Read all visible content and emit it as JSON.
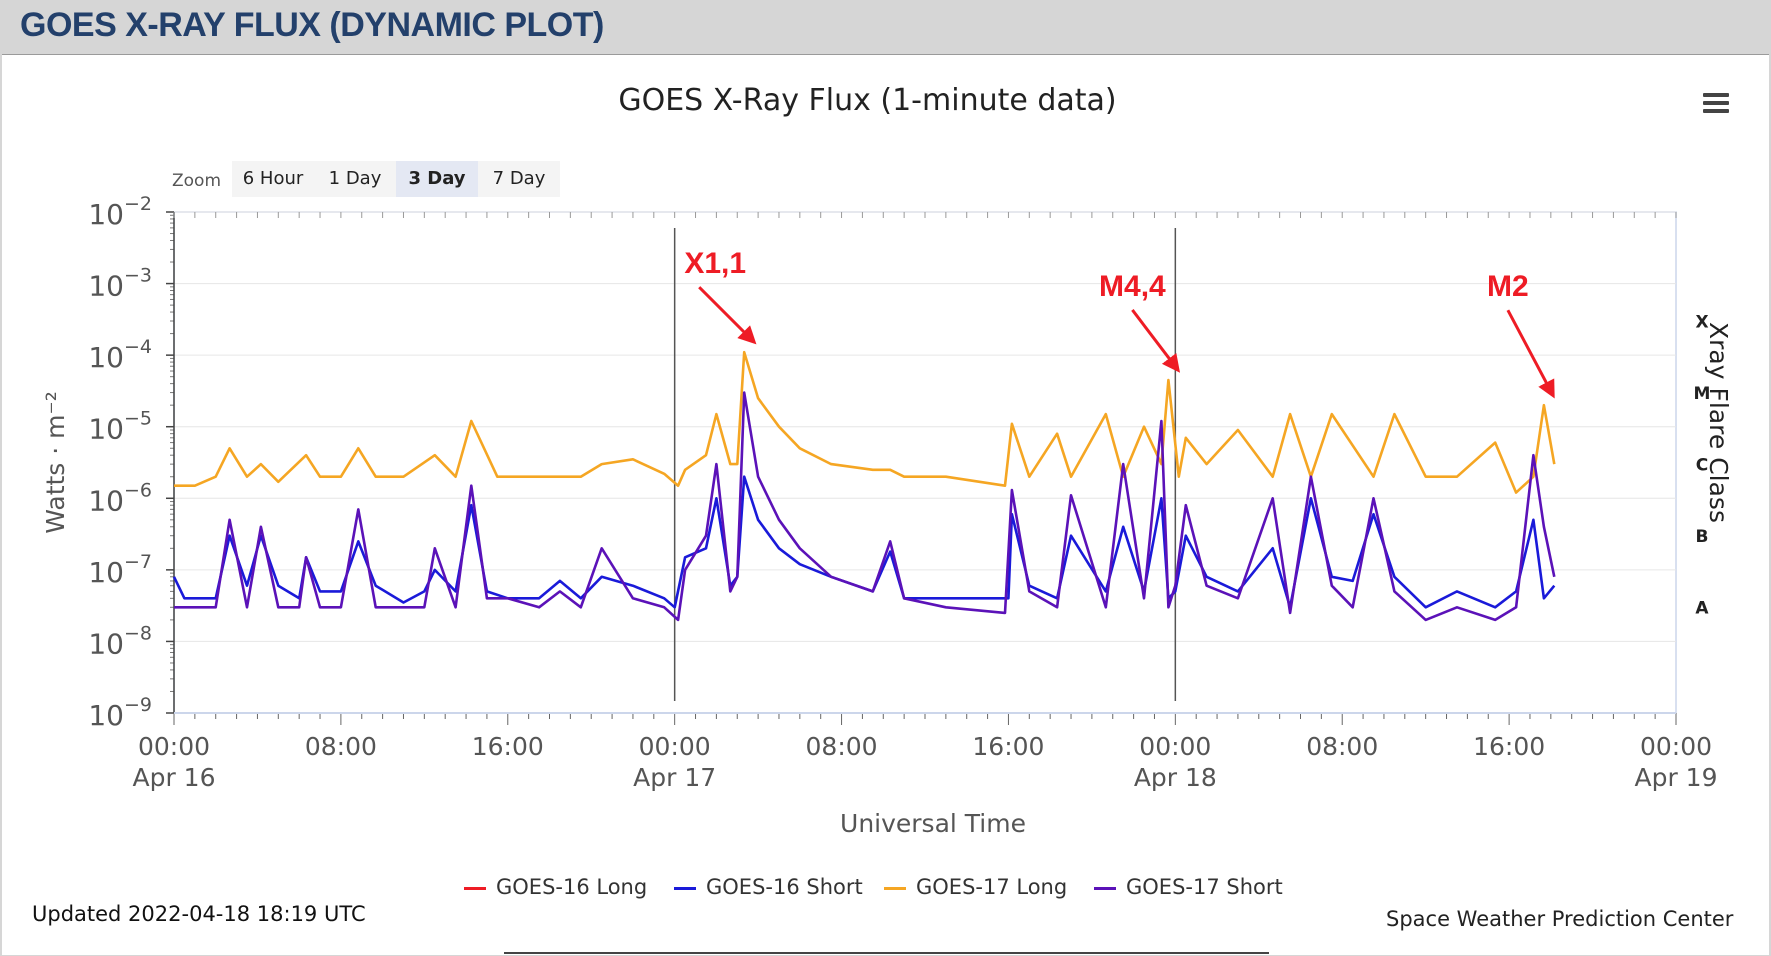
{
  "header": {
    "title": "GOES X-RAY FLUX (DYNAMIC PLOT)"
  },
  "zoom": {
    "label": "Zoom",
    "buttons": [
      {
        "label": "6 Hour",
        "active": false
      },
      {
        "label": "1 Day",
        "active": false
      },
      {
        "label": "3 Day",
        "active": true
      },
      {
        "label": "7 Day",
        "active": false
      }
    ]
  },
  "footer": {
    "updated": "Updated 2022-04-18 18:19 UTC",
    "credit": "Space Weather Prediction Center"
  },
  "chart_data": {
    "type": "line",
    "title": "GOES X-Ray Flux (1-minute data)",
    "xlabel": "Universal Time",
    "ylabel": "Watts · m⁻²",
    "y2label": "Xray Flare Class",
    "yscale": "log",
    "ylim": [
      1e-09,
      0.01
    ],
    "xlim": [
      "2022-04-16 00:00",
      "2022-04-19 00:00"
    ],
    "x_ticks": [
      {
        "time": "00:00",
        "date": "Apr 16"
      },
      {
        "time": "08:00",
        "date": ""
      },
      {
        "time": "16:00",
        "date": ""
      },
      {
        "time": "00:00",
        "date": "Apr 17"
      },
      {
        "time": "08:00",
        "date": ""
      },
      {
        "time": "16:00",
        "date": ""
      },
      {
        "time": "00:00",
        "date": "Apr 18"
      },
      {
        "time": "08:00",
        "date": ""
      },
      {
        "time": "16:00",
        "date": ""
      },
      {
        "time": "00:00",
        "date": "Apr 19"
      }
    ],
    "y_ticks": [
      -9,
      -8,
      -7,
      -6,
      -5,
      -4,
      -3,
      -2
    ],
    "flare_classes": [
      {
        "label": "X",
        "value": 0.0001
      },
      {
        "label": "M",
        "value": 1e-05
      },
      {
        "label": "C",
        "value": 1e-06
      },
      {
        "label": "B",
        "value": 1e-07
      },
      {
        "label": "A",
        "value": 1e-08
      }
    ],
    "day_lines": [
      "2022-04-17 00:00",
      "2022-04-18 00:00"
    ],
    "grid": true,
    "legend_position": "bottom",
    "series": [
      {
        "name": "GOES-16 Long",
        "color": "#ee1c25",
        "x": [],
        "y": []
      },
      {
        "name": "GOES-16 Short",
        "color": "#1a1ad9",
        "x": [
          "2022-04-16 00:00",
          "2022-04-16 00:30",
          "2022-04-16 02:00",
          "2022-04-16 02:40",
          "2022-04-16 03:30",
          "2022-04-16 04:10",
          "2022-04-16 05:00",
          "2022-04-16 06:00",
          "2022-04-16 06:20",
          "2022-04-16 07:00",
          "2022-04-16 08:00",
          "2022-04-16 08:50",
          "2022-04-16 09:40",
          "2022-04-16 11:00",
          "2022-04-16 12:00",
          "2022-04-16 12:30",
          "2022-04-16 13:30",
          "2022-04-16 14:15",
          "2022-04-16 15:00",
          "2022-04-16 16:00",
          "2022-04-16 17:30",
          "2022-04-16 18:30",
          "2022-04-16 19:30",
          "2022-04-16 20:30",
          "2022-04-16 22:00",
          "2022-04-16 23:30",
          "2022-04-17 00:00",
          "2022-04-17 00:30",
          "2022-04-17 01:30",
          "2022-04-17 02:00",
          "2022-04-17 02:40",
          "2022-04-17 03:00",
          "2022-04-17 03:20",
          "2022-04-17 04:00",
          "2022-04-17 05:00",
          "2022-04-17 06:00",
          "2022-04-17 07:30",
          "2022-04-17 09:30",
          "2022-04-17 10:20",
          "2022-04-17 11:00",
          "2022-04-17 13:00",
          "2022-04-17 14:30",
          "2022-04-17 16:00",
          "2022-04-17 16:10",
          "2022-04-17 17:00",
          "2022-04-17 18:20",
          "2022-04-17 19:00",
          "2022-04-17 20:40",
          "2022-04-17 21:30",
          "2022-04-17 22:30",
          "2022-04-17 23:20",
          "2022-04-17 23:40",
          "2022-04-18 00:00",
          "2022-04-18 00:30",
          "2022-04-18 01:30",
          "2022-04-18 03:00",
          "2022-04-18 04:40",
          "2022-04-18 05:30",
          "2022-04-18 06:30",
          "2022-04-18 07:30",
          "2022-04-18 08:30",
          "2022-04-18 09:30",
          "2022-04-18 10:30",
          "2022-04-18 12:00",
          "2022-04-18 13:30",
          "2022-04-18 15:20",
          "2022-04-18 16:20",
          "2022-04-18 17:10",
          "2022-04-18 17:40",
          "2022-04-18 18:10"
        ],
        "y": [
          8e-08,
          4e-08,
          4e-08,
          3e-07,
          6e-08,
          3e-07,
          6e-08,
          4e-08,
          1.5e-07,
          5e-08,
          5e-08,
          2.5e-07,
          6e-08,
          3.5e-08,
          5e-08,
          1e-07,
          5e-08,
          8e-07,
          5e-08,
          4e-08,
          4e-08,
          7e-08,
          4e-08,
          8e-08,
          6e-08,
          4e-08,
          3e-08,
          1.5e-07,
          2e-07,
          1e-06,
          6e-08,
          8e-08,
          2e-06,
          5e-07,
          2e-07,
          1.2e-07,
          8e-08,
          5e-08,
          1.8e-07,
          4e-08,
          4e-08,
          4e-08,
          4e-08,
          6e-07,
          6e-08,
          4e-08,
          3e-07,
          5e-08,
          4e-07,
          5e-08,
          1e-06,
          4e-08,
          5e-08,
          3e-07,
          8e-08,
          5e-08,
          2e-07,
          3e-08,
          1e-06,
          8e-08,
          7e-08,
          6e-07,
          8e-08,
          3e-08,
          5e-08,
          3e-08,
          5e-08,
          5e-07,
          4e-08,
          6e-08
        ]
      },
      {
        "name": "GOES-17 Long",
        "color": "#f5a623",
        "x": [
          "2022-04-16 00:00",
          "2022-04-16 01:00",
          "2022-04-16 02:00",
          "2022-04-16 02:40",
          "2022-04-16 03:30",
          "2022-04-16 04:10",
          "2022-04-16 05:00",
          "2022-04-16 06:20",
          "2022-04-16 07:00",
          "2022-04-16 08:00",
          "2022-04-16 08:50",
          "2022-04-16 09:40",
          "2022-04-16 11:00",
          "2022-04-16 12:30",
          "2022-04-16 13:30",
          "2022-04-16 14:15",
          "2022-04-16 15:30",
          "2022-04-16 17:30",
          "2022-04-16 19:30",
          "2022-04-16 20:30",
          "2022-04-16 22:00",
          "2022-04-16 23:30",
          "2022-04-17 00:10",
          "2022-04-17 00:30",
          "2022-04-17 01:30",
          "2022-04-17 02:00",
          "2022-04-17 02:40",
          "2022-04-17 03:00",
          "2022-04-17 03:20",
          "2022-04-17 04:00",
          "2022-04-17 05:00",
          "2022-04-17 06:00",
          "2022-04-17 07:30",
          "2022-04-17 09:30",
          "2022-04-17 10:20",
          "2022-04-17 11:00",
          "2022-04-17 13:00",
          "2022-04-17 15:50",
          "2022-04-17 16:10",
          "2022-04-17 17:00",
          "2022-04-17 18:20",
          "2022-04-17 19:00",
          "2022-04-17 20:40",
          "2022-04-17 21:30",
          "2022-04-17 22:30",
          "2022-04-17 23:20",
          "2022-04-17 23:40",
          "2022-04-18 00:10",
          "2022-04-18 00:30",
          "2022-04-18 01:30",
          "2022-04-18 03:00",
          "2022-04-18 04:40",
          "2022-04-18 05:30",
          "2022-04-18 06:30",
          "2022-04-18 07:30",
          "2022-04-18 09:30",
          "2022-04-18 10:30",
          "2022-04-18 12:00",
          "2022-04-18 13:30",
          "2022-04-18 15:20",
          "2022-04-18 16:20",
          "2022-04-18 17:10",
          "2022-04-18 17:40",
          "2022-04-18 18:10"
        ],
        "y": [
          1.5e-06,
          1.5e-06,
          2e-06,
          5e-06,
          2e-06,
          3e-06,
          1.7e-06,
          4e-06,
          2e-06,
          2e-06,
          5e-06,
          2e-06,
          2e-06,
          4e-06,
          2e-06,
          1.2e-05,
          2e-06,
          2e-06,
          2e-06,
          3e-06,
          3.5e-06,
          2.2e-06,
          1.5e-06,
          2.5e-06,
          4e-06,
          1.5e-05,
          3e-06,
          3e-06,
          0.00011,
          2.5e-05,
          1e-05,
          5e-06,
          3e-06,
          2.5e-06,
          2.5e-06,
          2e-06,
          2e-06,
          1.5e-06,
          1.1e-05,
          2e-06,
          8e-06,
          2e-06,
          1.5e-05,
          2e-06,
          1e-05,
          3e-06,
          4.5e-05,
          2e-06,
          7e-06,
          3e-06,
          9e-06,
          2e-06,
          1.5e-05,
          2e-06,
          1.5e-05,
          2e-06,
          1.5e-05,
          2e-06,
          2e-06,
          6e-06,
          1.2e-06,
          2e-06,
          2e-05,
          3e-06
        ]
      },
      {
        "name": "GOES-17 Short",
        "color": "#5b12b8",
        "x": [
          "2022-04-16 00:00",
          "2022-04-16 00:30",
          "2022-04-16 02:00",
          "2022-04-16 02:40",
          "2022-04-16 03:30",
          "2022-04-16 04:10",
          "2022-04-16 05:00",
          "2022-04-16 06:00",
          "2022-04-16 06:20",
          "2022-04-16 07:00",
          "2022-04-16 08:00",
          "2022-04-16 08:50",
          "2022-04-16 09:40",
          "2022-04-16 11:00",
          "2022-04-16 12:00",
          "2022-04-16 12:30",
          "2022-04-16 13:30",
          "2022-04-16 14:15",
          "2022-04-16 15:00",
          "2022-04-16 16:00",
          "2022-04-16 17:30",
          "2022-04-16 18:30",
          "2022-04-16 19:30",
          "2022-04-16 20:30",
          "2022-04-16 22:00",
          "2022-04-16 23:30",
          "2022-04-17 00:10",
          "2022-04-17 00:30",
          "2022-04-17 01:30",
          "2022-04-17 02:00",
          "2022-04-17 02:40",
          "2022-04-17 03:00",
          "2022-04-17 03:20",
          "2022-04-17 04:00",
          "2022-04-17 05:00",
          "2022-04-17 06:00",
          "2022-04-17 07:30",
          "2022-04-17 09:30",
          "2022-04-17 10:20",
          "2022-04-17 11:00",
          "2022-04-17 13:00",
          "2022-04-17 15:50",
          "2022-04-17 16:10",
          "2022-04-17 17:00",
          "2022-04-17 18:20",
          "2022-04-17 19:00",
          "2022-04-17 20:40",
          "2022-04-17 21:30",
          "2022-04-17 22:30",
          "2022-04-17 23:20",
          "2022-04-17 23:40",
          "2022-04-18 00:00",
          "2022-04-18 00:30",
          "2022-04-18 01:30",
          "2022-04-18 03:00",
          "2022-04-18 04:40",
          "2022-04-18 05:30",
          "2022-04-18 06:30",
          "2022-04-18 07:30",
          "2022-04-18 08:30",
          "2022-04-18 09:30",
          "2022-04-18 10:30",
          "2022-04-18 12:00",
          "2022-04-18 13:30",
          "2022-04-18 15:20",
          "2022-04-18 16:20",
          "2022-04-18 17:10",
          "2022-04-18 17:40",
          "2022-04-18 18:10"
        ],
        "y": [
          3e-08,
          3e-08,
          3e-08,
          5e-07,
          3e-08,
          4e-07,
          3e-08,
          3e-08,
          1.5e-07,
          3e-08,
          3e-08,
          7e-07,
          3e-08,
          3e-08,
          3e-08,
          2e-07,
          3e-08,
          1.5e-06,
          4e-08,
          4e-08,
          3e-08,
          5e-08,
          3e-08,
          2e-07,
          4e-08,
          3e-08,
          2e-08,
          1e-07,
          3e-07,
          3e-06,
          5e-08,
          8e-08,
          3e-05,
          2e-06,
          5e-07,
          2e-07,
          8e-08,
          5e-08,
          2.5e-07,
          4e-08,
          3e-08,
          2.5e-08,
          1.3e-06,
          5e-08,
          3e-08,
          1.1e-06,
          3e-08,
          3e-06,
          4e-08,
          1.2e-05,
          3e-08,
          6e-08,
          8e-07,
          6e-08,
          4e-08,
          1e-06,
          2.5e-08,
          2e-06,
          6e-08,
          3e-08,
          1e-06,
          5e-08,
          2e-08,
          3e-08,
          2e-08,
          3e-08,
          4e-06,
          4e-07,
          8e-08
        ]
      }
    ],
    "annotations": [
      {
        "text": "X1,1",
        "time": "2022-04-17 03:20",
        "value": 0.00011
      },
      {
        "text": "M4,4",
        "time": "2022-04-17 23:40",
        "value": 4.5e-05
      },
      {
        "text": "M2",
        "time": "2022-04-18 17:40",
        "value": 2e-05
      }
    ]
  }
}
